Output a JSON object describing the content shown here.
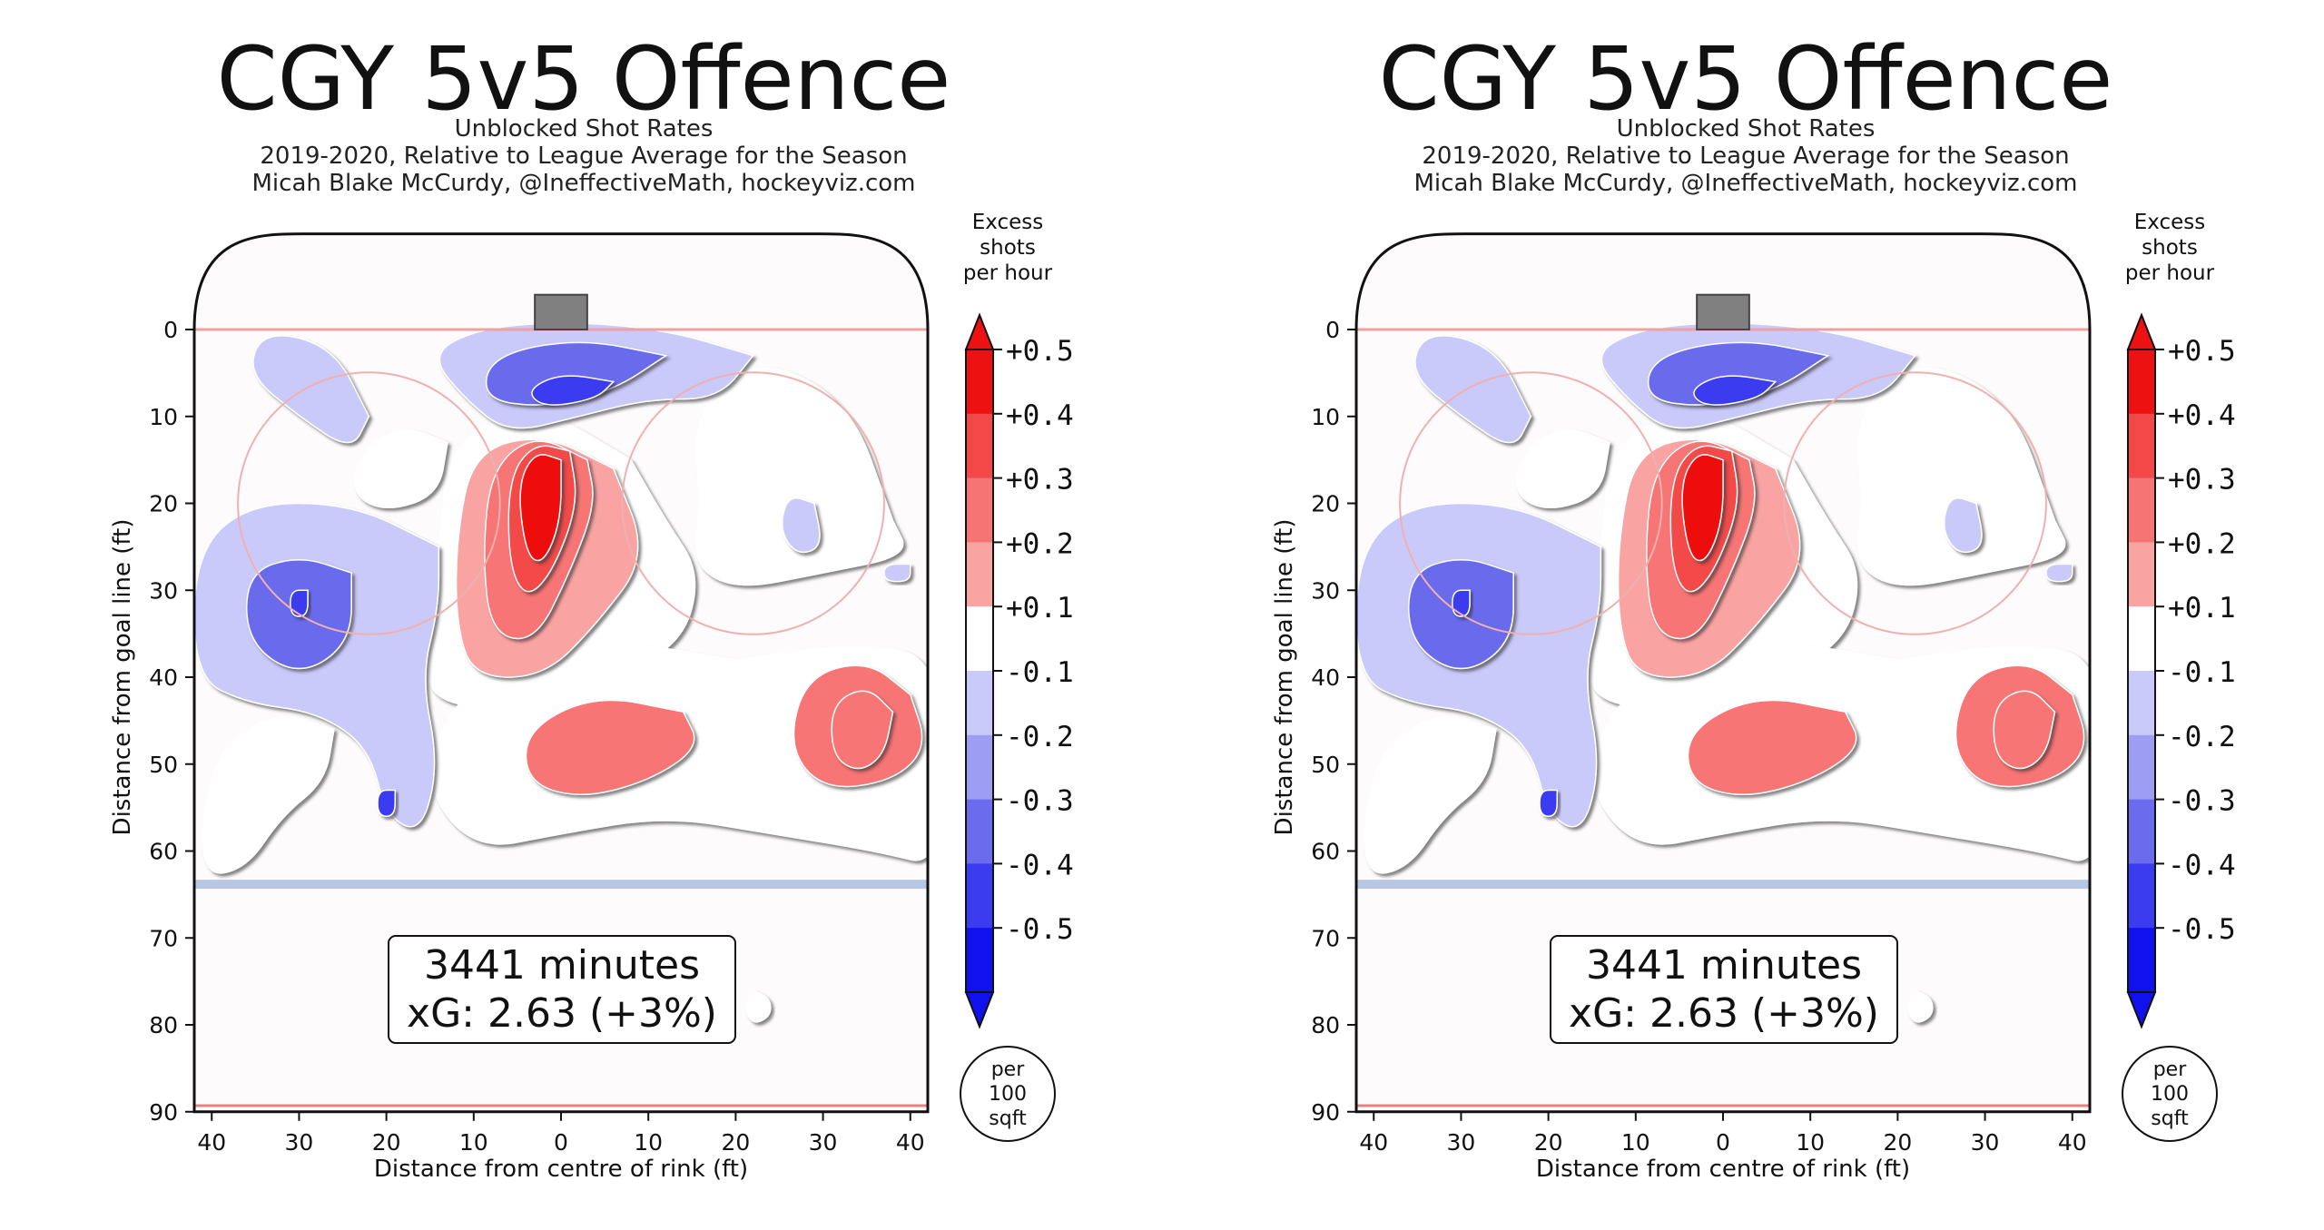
{
  "charts": [
    {
      "title": "CGY 5v5 Offence",
      "subtitle_lines": [
        "Unblocked Shot Rates",
        "2019-2020, Relative to League Average for the Season",
        "Micah Blake McCurdy, @IneffectiveMath, hockeyviz.com"
      ],
      "minutes_label": "3441 minutes",
      "xg_label": "xG: 2.63 (+3%)",
      "colorbar_title": [
        "Excess",
        "shots",
        "per hour"
      ],
      "unit_label": [
        "per",
        "100",
        "sqft"
      ]
    },
    {
      "title": "CGY 5v5 Offence",
      "subtitle_lines": [
        "Unblocked Shot Rates",
        "2019-2020, Relative to League Average for the Season",
        "Micah Blake McCurdy, @IneffectiveMath, hockeyviz.com"
      ],
      "minutes_label": "3441 minutes",
      "xg_label": "xG: 2.63 (+3%)",
      "colorbar_title": [
        "Excess",
        "shots",
        "per hour"
      ],
      "unit_label": [
        "per",
        "100",
        "sqft"
      ]
    }
  ],
  "chart_data": [
    {
      "type": "heatmap",
      "title": "CGY 5v5 Offence",
      "xlabel": "Distance from centre of rink (ft)",
      "ylabel": "Distance from goal line (ft)",
      "xlim": [
        -42,
        42
      ],
      "ylim": [
        -11,
        90
      ],
      "x_ticks": [
        -40,
        -30,
        -20,
        -10,
        0,
        10,
        20,
        30,
        40
      ],
      "x_tick_labels": [
        "40",
        "30",
        "20",
        "10",
        "0",
        "10",
        "20",
        "30",
        "40"
      ],
      "y_ticks": [
        0,
        10,
        20,
        30,
        40,
        50,
        60,
        70,
        80,
        90
      ],
      "y_tick_labels": [
        "0",
        "10",
        "20",
        "30",
        "40",
        "50",
        "60",
        "70",
        "80",
        "90"
      ],
      "colorbar": {
        "label": "Excess shots per hour",
        "levels": [
          0.5,
          0.4,
          0.3,
          0.2,
          0.1,
          -0.1,
          -0.2,
          -0.3,
          -0.4,
          -0.5
        ],
        "tick_labels": [
          "+0.5",
          "+0.4",
          "+0.3",
          "+0.2",
          "+0.1",
          "-0.1",
          "-0.2",
          "-0.3",
          "-0.4",
          "-0.5"
        ],
        "colors": [
          "#ee1111",
          "#f34848",
          "#f77474",
          "#faa3a3",
          "#ffffff",
          "#c9c9fa",
          "#9d9df3",
          "#6b6bed",
          "#3b3bf0",
          "#1111f0"
        ]
      },
      "regions": [
        {
          "x": 3,
          "y": 22,
          "value": 0.5
        },
        {
          "x": -30,
          "y": 22,
          "value": 0.15
        },
        {
          "x": -35,
          "y": 45,
          "value": 0.35
        },
        {
          "x": -2,
          "y": 49,
          "value": 0.25
        },
        {
          "x": 22,
          "y": 16,
          "value": 0.15
        },
        {
          "x": 33,
          "y": 55,
          "value": 0.15
        },
        {
          "x": -23,
          "y": 78,
          "value": 0.15
        },
        {
          "x": -5,
          "y": 6,
          "value": -0.4
        },
        {
          "x": -29,
          "y": 32,
          "value": -0.3
        },
        {
          "x": 28,
          "y": 5,
          "value": -0.15
        },
        {
          "x": -25,
          "y": 23,
          "value": -0.15
        },
        {
          "x": 30,
          "y": 31,
          "value": -0.3
        },
        {
          "x": 20,
          "y": 50,
          "value": -0.2
        },
        {
          "x": 39,
          "y": 28,
          "value": -0.1
        }
      ],
      "annotation": [
        "3441 minutes",
        "xG: 2.63 (+3%)"
      ]
    },
    {
      "type": "heatmap",
      "title": "CGY 5v5 Offence",
      "xlabel": "Distance from centre of rink (ft)",
      "ylabel": "Distance from goal line (ft)",
      "xlim": [
        -42,
        42
      ],
      "ylim": [
        -11,
        90
      ],
      "x_ticks": [
        -40,
        -30,
        -20,
        -10,
        0,
        10,
        20,
        30,
        40
      ],
      "x_tick_labels": [
        "40",
        "30",
        "20",
        "10",
        "0",
        "10",
        "20",
        "30",
        "40"
      ],
      "y_ticks": [
        0,
        10,
        20,
        30,
        40,
        50,
        60,
        70,
        80,
        90
      ],
      "y_tick_labels": [
        "0",
        "10",
        "20",
        "30",
        "40",
        "50",
        "60",
        "70",
        "80",
        "90"
      ],
      "colorbar": {
        "label": "Excess shots per hour",
        "levels": [
          0.5,
          0.4,
          0.3,
          0.2,
          0.1,
          -0.1,
          -0.2,
          -0.3,
          -0.4,
          -0.5
        ],
        "tick_labels": [
          "+0.5",
          "+0.4",
          "+0.3",
          "+0.2",
          "+0.1",
          "-0.1",
          "-0.2",
          "-0.3",
          "-0.4",
          "-0.5"
        ],
        "colors": [
          "#ee1111",
          "#f34848",
          "#f77474",
          "#faa3a3",
          "#ffffff",
          "#c9c9fa",
          "#9d9df3",
          "#6b6bed",
          "#3b3bf0",
          "#1111f0"
        ]
      },
      "regions": [
        {
          "x": 3,
          "y": 22,
          "value": 0.5
        },
        {
          "x": -30,
          "y": 22,
          "value": 0.15
        },
        {
          "x": -35,
          "y": 45,
          "value": 0.35
        },
        {
          "x": -2,
          "y": 49,
          "value": 0.25
        },
        {
          "x": 22,
          "y": 16,
          "value": 0.15
        },
        {
          "x": 33,
          "y": 55,
          "value": 0.15
        },
        {
          "x": -23,
          "y": 78,
          "value": 0.15
        },
        {
          "x": -5,
          "y": 6,
          "value": -0.4
        },
        {
          "x": -29,
          "y": 32,
          "value": -0.3
        },
        {
          "x": 28,
          "y": 5,
          "value": -0.15
        },
        {
          "x": -25,
          "y": 23,
          "value": -0.15
        },
        {
          "x": 30,
          "y": 31,
          "value": -0.3
        },
        {
          "x": 20,
          "y": 50,
          "value": -0.2
        },
        {
          "x": 39,
          "y": 28,
          "value": -0.1
        }
      ],
      "annotation": [
        "3441 minutes",
        "xG: 2.63 (+3%)"
      ]
    }
  ]
}
